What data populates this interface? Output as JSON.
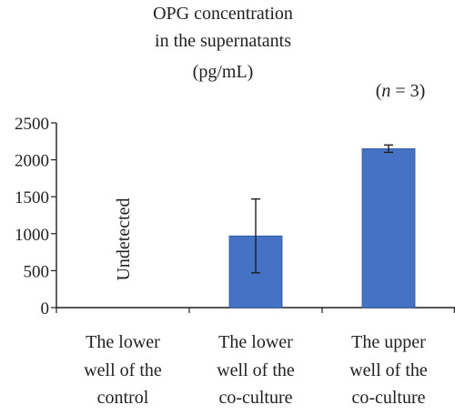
{
  "chart_data": {
    "type": "bar",
    "title_lines": [
      "OPG concentration",
      "in the supernatants",
      "(pg/mL)"
    ],
    "annotation": "(n = 3)",
    "ylim": [
      0,
      2500
    ],
    "yticks": [
      0,
      500,
      1000,
      1500,
      2000,
      2500
    ],
    "bar_color": "#4472c4",
    "categories": [
      [
        "The lower",
        "well of the",
        "control"
      ],
      [
        "The lower",
        "well of the",
        "co-culture"
      ],
      [
        "The upper",
        "well of the",
        "co-culture"
      ]
    ],
    "values": [
      null,
      970,
      2150
    ],
    "error": [
      null,
      500,
      50
    ],
    "value_labels": [
      "Undetected",
      "",
      ""
    ],
    "grid": false,
    "legend": false
  }
}
